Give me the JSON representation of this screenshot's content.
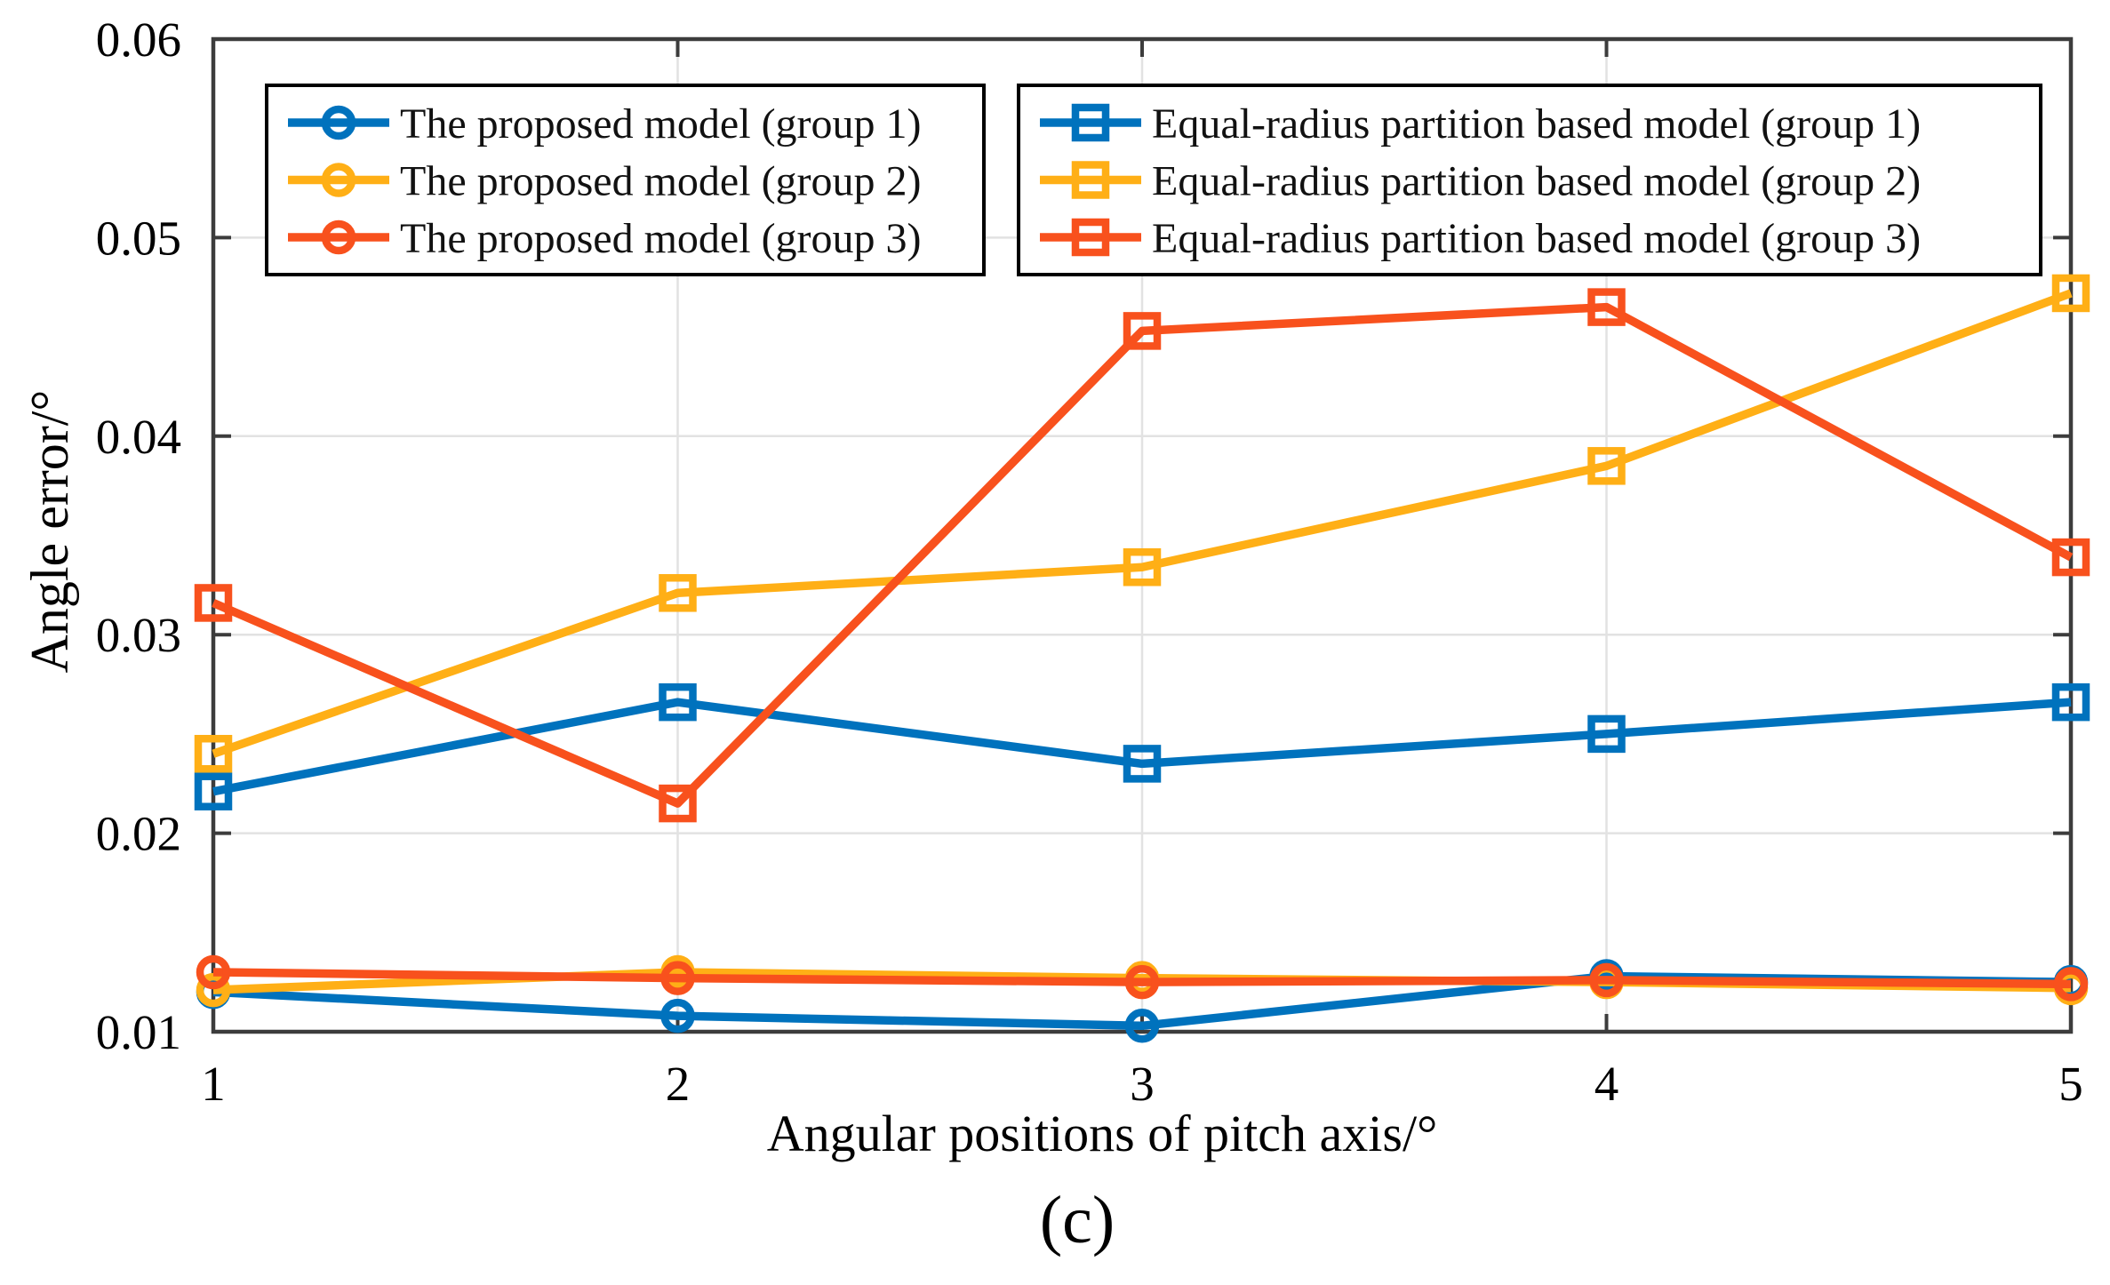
{
  "figure": {
    "caption": "(c)",
    "background": "#ffffff"
  },
  "chart_data": {
    "type": "line",
    "title": "",
    "xlabel": "Angular positions of pitch axis/°",
    "ylabel": "Angle error/°",
    "x": [
      1,
      2,
      3,
      4,
      5
    ],
    "xlim": [
      1,
      5
    ],
    "ylim": [
      0.01,
      0.06
    ],
    "xticks": [
      1,
      2,
      3,
      4,
      5
    ],
    "xtick_labels": [
      "1",
      "2",
      "3",
      "4",
      "5"
    ],
    "yticks": [
      0.01,
      0.02,
      0.03,
      0.04,
      0.05,
      0.06
    ],
    "ytick_labels": [
      "0.01",
      "0.02",
      "0.03",
      "0.04",
      "0.05",
      "0.06"
    ],
    "grid": true,
    "axis_color": "#3c3c3c",
    "grid_color": "#e2e2e2",
    "legend_position": "two boxes, top inside plot",
    "series": [
      {
        "name": "The proposed model (group 1)",
        "marker": "circle",
        "color": "#0072BD",
        "values": [
          0.012,
          0.0108,
          0.0103,
          0.0128,
          0.0125
        ]
      },
      {
        "name": "The proposed model (group 2)",
        "marker": "circle",
        "color": "#FFAF16",
        "values": [
          0.0121,
          0.013,
          0.0127,
          0.0125,
          0.0122
        ]
      },
      {
        "name": "The proposed model (group 3)",
        "marker": "circle",
        "color": "#F8511D",
        "values": [
          0.013,
          0.0127,
          0.0125,
          0.0126,
          0.0124
        ]
      },
      {
        "name": "Equal-radius partition based model (group 1)",
        "marker": "square",
        "color": "#0072BD",
        "values": [
          0.0221,
          0.0266,
          0.0235,
          0.025,
          0.0266
        ]
      },
      {
        "name": "Equal-radius partition based model (group 2)",
        "marker": "square",
        "color": "#FFAF16",
        "values": [
          0.024,
          0.0321,
          0.0334,
          0.0385,
          0.0472
        ]
      },
      {
        "name": "Equal-radius partition based model (group 3)",
        "marker": "square",
        "color": "#F8511D",
        "values": [
          0.0316,
          0.0215,
          0.0453,
          0.0465,
          0.0339
        ]
      }
    ],
    "legend_boxes": [
      {
        "series_indexes": [
          0,
          1,
          2
        ]
      },
      {
        "series_indexes": [
          3,
          4,
          5
        ]
      }
    ]
  }
}
